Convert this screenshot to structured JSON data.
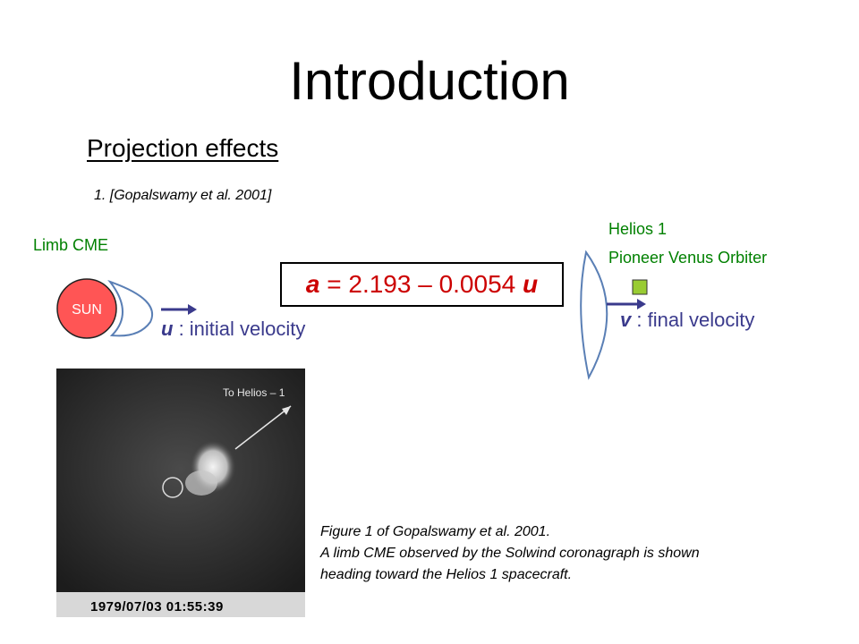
{
  "slide": {
    "title": "Introduction",
    "subtitle": "Projection effects",
    "reference": "1. [Gopalswamy et al. 2001]"
  },
  "diagram": {
    "limb_label": "Limb CME",
    "sun_label": "SUN",
    "spacecraft_line1": "Helios 1",
    "spacecraft_line2": "Pioneer Venus Orbiter",
    "formula": {
      "var_a": "a",
      "equals": " = 2.193 – 0.0054 ",
      "var_u": "u"
    },
    "initial_velocity": {
      "symbol": "u",
      "text": " : initial velocity"
    },
    "final_velocity": {
      "symbol": "v",
      "text": " : final velocity"
    }
  },
  "figure": {
    "timestamp": "1979/07/03 01:55:39",
    "arrow_label": "To Helios – 1",
    "caption_line1": "Figure 1 of Gopalswamy et al. 2001.",
    "caption_line2": "A limb CME observed by the Solwind coronagraph is shown",
    "caption_line3": "heading toward the Helios 1 spacecraft."
  },
  "colors": {
    "sun_fill": "#ff5555",
    "label_green": "#008000",
    "formula_red": "#cc0000",
    "velocity_blue": "#3a3a8c",
    "spacecraft_green": "#99cc33"
  }
}
